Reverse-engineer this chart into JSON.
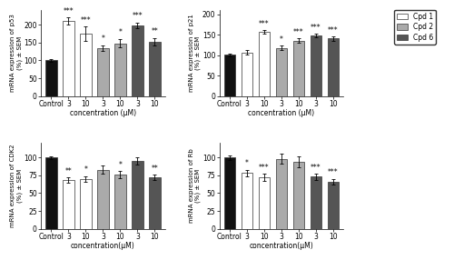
{
  "panels": [
    {
      "title": "p53",
      "ylabel": "mRNA expression of p53\n(%) ± SEM",
      "ylim": [
        0,
        240
      ],
      "yticks": [
        0,
        50,
        100,
        150,
        200
      ],
      "bars": [
        {
          "label": "Control",
          "value": 100,
          "sem": 4,
          "color": "#111111",
          "sig": ""
        },
        {
          "label": "3",
          "value": 210,
          "sem": 10,
          "color": "#ffffff",
          "sig": "***"
        },
        {
          "label": "10",
          "value": 175,
          "sem": 20,
          "color": "#ffffff",
          "sig": "***"
        },
        {
          "label": "3",
          "value": 135,
          "sem": 8,
          "color": "#aaaaaa",
          "sig": "*"
        },
        {
          "label": "10",
          "value": 148,
          "sem": 12,
          "color": "#aaaaaa",
          "sig": "*"
        },
        {
          "label": "3",
          "value": 198,
          "sem": 8,
          "color": "#555555",
          "sig": "***"
        },
        {
          "label": "10",
          "value": 153,
          "sem": 10,
          "color": "#555555",
          "sig": "**"
        }
      ],
      "xlabel": "concentration (μM)"
    },
    {
      "title": "p21",
      "ylabel": "mRNA expression of p21\n(%) ± SEM",
      "ylim": [
        0,
        210
      ],
      "yticks": [
        0,
        50,
        100,
        150,
        200
      ],
      "bars": [
        {
          "label": "Control",
          "value": 101,
          "sem": 4,
          "color": "#111111",
          "sig": ""
        },
        {
          "label": "3",
          "value": 107,
          "sem": 6,
          "color": "#ffffff",
          "sig": ""
        },
        {
          "label": "10",
          "value": 157,
          "sem": 5,
          "color": "#ffffff",
          "sig": "***"
        },
        {
          "label": "3",
          "value": 118,
          "sem": 6,
          "color": "#aaaaaa",
          "sig": "*"
        },
        {
          "label": "10",
          "value": 136,
          "sem": 5,
          "color": "#aaaaaa",
          "sig": "***"
        },
        {
          "label": "3",
          "value": 148,
          "sem": 5,
          "color": "#555555",
          "sig": "***"
        },
        {
          "label": "10",
          "value": 141,
          "sem": 5,
          "color": "#555555",
          "sig": "***"
        }
      ],
      "xlabel": "concentration (μM)"
    },
    {
      "title": "CDK2",
      "ylabel": "mRNA expression of CDK2\n(%) ± SEM",
      "ylim": [
        0,
        120
      ],
      "yticks": [
        0,
        25,
        50,
        75,
        100
      ],
      "bars": [
        {
          "label": "Control",
          "value": 100,
          "sem": 2,
          "color": "#111111",
          "sig": ""
        },
        {
          "label": "3",
          "value": 68,
          "sem": 4,
          "color": "#ffffff",
          "sig": "**"
        },
        {
          "label": "10",
          "value": 70,
          "sem": 4,
          "color": "#ffffff",
          "sig": "*"
        },
        {
          "label": "3",
          "value": 83,
          "sem": 6,
          "color": "#aaaaaa",
          "sig": ""
        },
        {
          "label": "10",
          "value": 76,
          "sem": 5,
          "color": "#aaaaaa",
          "sig": "*"
        },
        {
          "label": "3",
          "value": 95,
          "sem": 5,
          "color": "#555555",
          "sig": ""
        },
        {
          "label": "10",
          "value": 72,
          "sem": 4,
          "color": "#555555",
          "sig": "**"
        }
      ],
      "xlabel": "concentration(μM)"
    },
    {
      "title": "Rb",
      "ylabel": "mRNA expression of Rb\n(%) ± SEM",
      "ylim": [
        0,
        120
      ],
      "yticks": [
        0,
        25,
        50,
        75,
        100
      ],
      "bars": [
        {
          "label": "Control",
          "value": 100,
          "sem": 3,
          "color": "#111111",
          "sig": ""
        },
        {
          "label": "3",
          "value": 78,
          "sem": 5,
          "color": "#ffffff",
          "sig": "*"
        },
        {
          "label": "10",
          "value": 72,
          "sem": 5,
          "color": "#ffffff",
          "sig": "***"
        },
        {
          "label": "3",
          "value": 98,
          "sem": 7,
          "color": "#aaaaaa",
          "sig": ""
        },
        {
          "label": "10",
          "value": 94,
          "sem": 8,
          "color": "#aaaaaa",
          "sig": ""
        },
        {
          "label": "3",
          "value": 73,
          "sem": 4,
          "color": "#555555",
          "sig": "***"
        },
        {
          "label": "10",
          "value": 66,
          "sem": 4,
          "color": "#555555",
          "sig": "***"
        }
      ],
      "xlabel": "concentration(μM)"
    }
  ],
  "legend": {
    "labels": [
      "Cpd 1",
      "Cpd 2",
      "Cpd 6"
    ],
    "colors": [
      "#ffffff",
      "#aaaaaa",
      "#555555"
    ]
  },
  "bar_width": 0.65,
  "edgecolor": "#333333",
  "background_color": "#ffffff",
  "fontsize": 5.5,
  "sig_fontsize": 5.5,
  "ylabel_fontsize": 5.0,
  "xlabel_fontsize": 5.5
}
